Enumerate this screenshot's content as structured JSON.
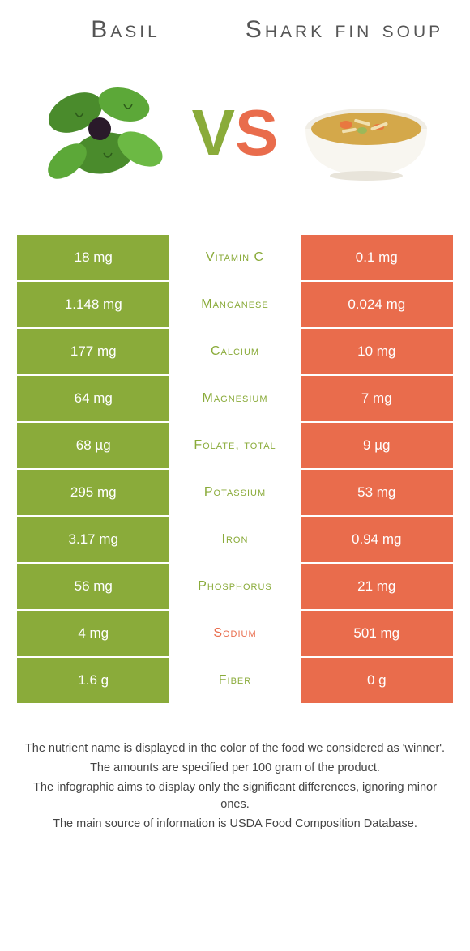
{
  "header": {
    "left_title": "Basil",
    "right_title": "Shark fin soup",
    "vs_v": "V",
    "vs_s": "S"
  },
  "colors": {
    "green": "#8aab3a",
    "orange": "#e96c4c",
    "text": "#555555",
    "footer_text": "#444444",
    "background": "#ffffff"
  },
  "typography": {
    "title_fontsize": 30,
    "vs_fontsize": 80,
    "cell_fontsize": 17,
    "nutrient_fontsize": 16,
    "footer_fontsize": 14.5
  },
  "table": {
    "rows": [
      {
        "left": "18 mg",
        "nutrient": "Vitamin C",
        "right": "0.1 mg",
        "winner": "left"
      },
      {
        "left": "1.148 mg",
        "nutrient": "Manganese",
        "right": "0.024 mg",
        "winner": "left"
      },
      {
        "left": "177 mg",
        "nutrient": "Calcium",
        "right": "10 mg",
        "winner": "left"
      },
      {
        "left": "64 mg",
        "nutrient": "Magnesium",
        "right": "7 mg",
        "winner": "left"
      },
      {
        "left": "68 µg",
        "nutrient": "Folate, total",
        "right": "9 µg",
        "winner": "left"
      },
      {
        "left": "295 mg",
        "nutrient": "Potassium",
        "right": "53 mg",
        "winner": "left"
      },
      {
        "left": "3.17 mg",
        "nutrient": "Iron",
        "right": "0.94 mg",
        "winner": "left"
      },
      {
        "left": "56 mg",
        "nutrient": "Phosphorus",
        "right": "21 mg",
        "winner": "left"
      },
      {
        "left": "4 mg",
        "nutrient": "Sodium",
        "right": "501 mg",
        "winner": "right"
      },
      {
        "left": "1.6 g",
        "nutrient": "Fiber",
        "right": "0 g",
        "winner": "left"
      }
    ]
  },
  "footer": {
    "line1": "The nutrient name is displayed in the color of the food we considered as 'winner'.",
    "line2": "The amounts are specified per 100 gram of the product.",
    "line3": "The infographic aims to display only the significant differences, ignoring minor ones.",
    "line4": "The main source of information is USDA Food Composition Database."
  }
}
